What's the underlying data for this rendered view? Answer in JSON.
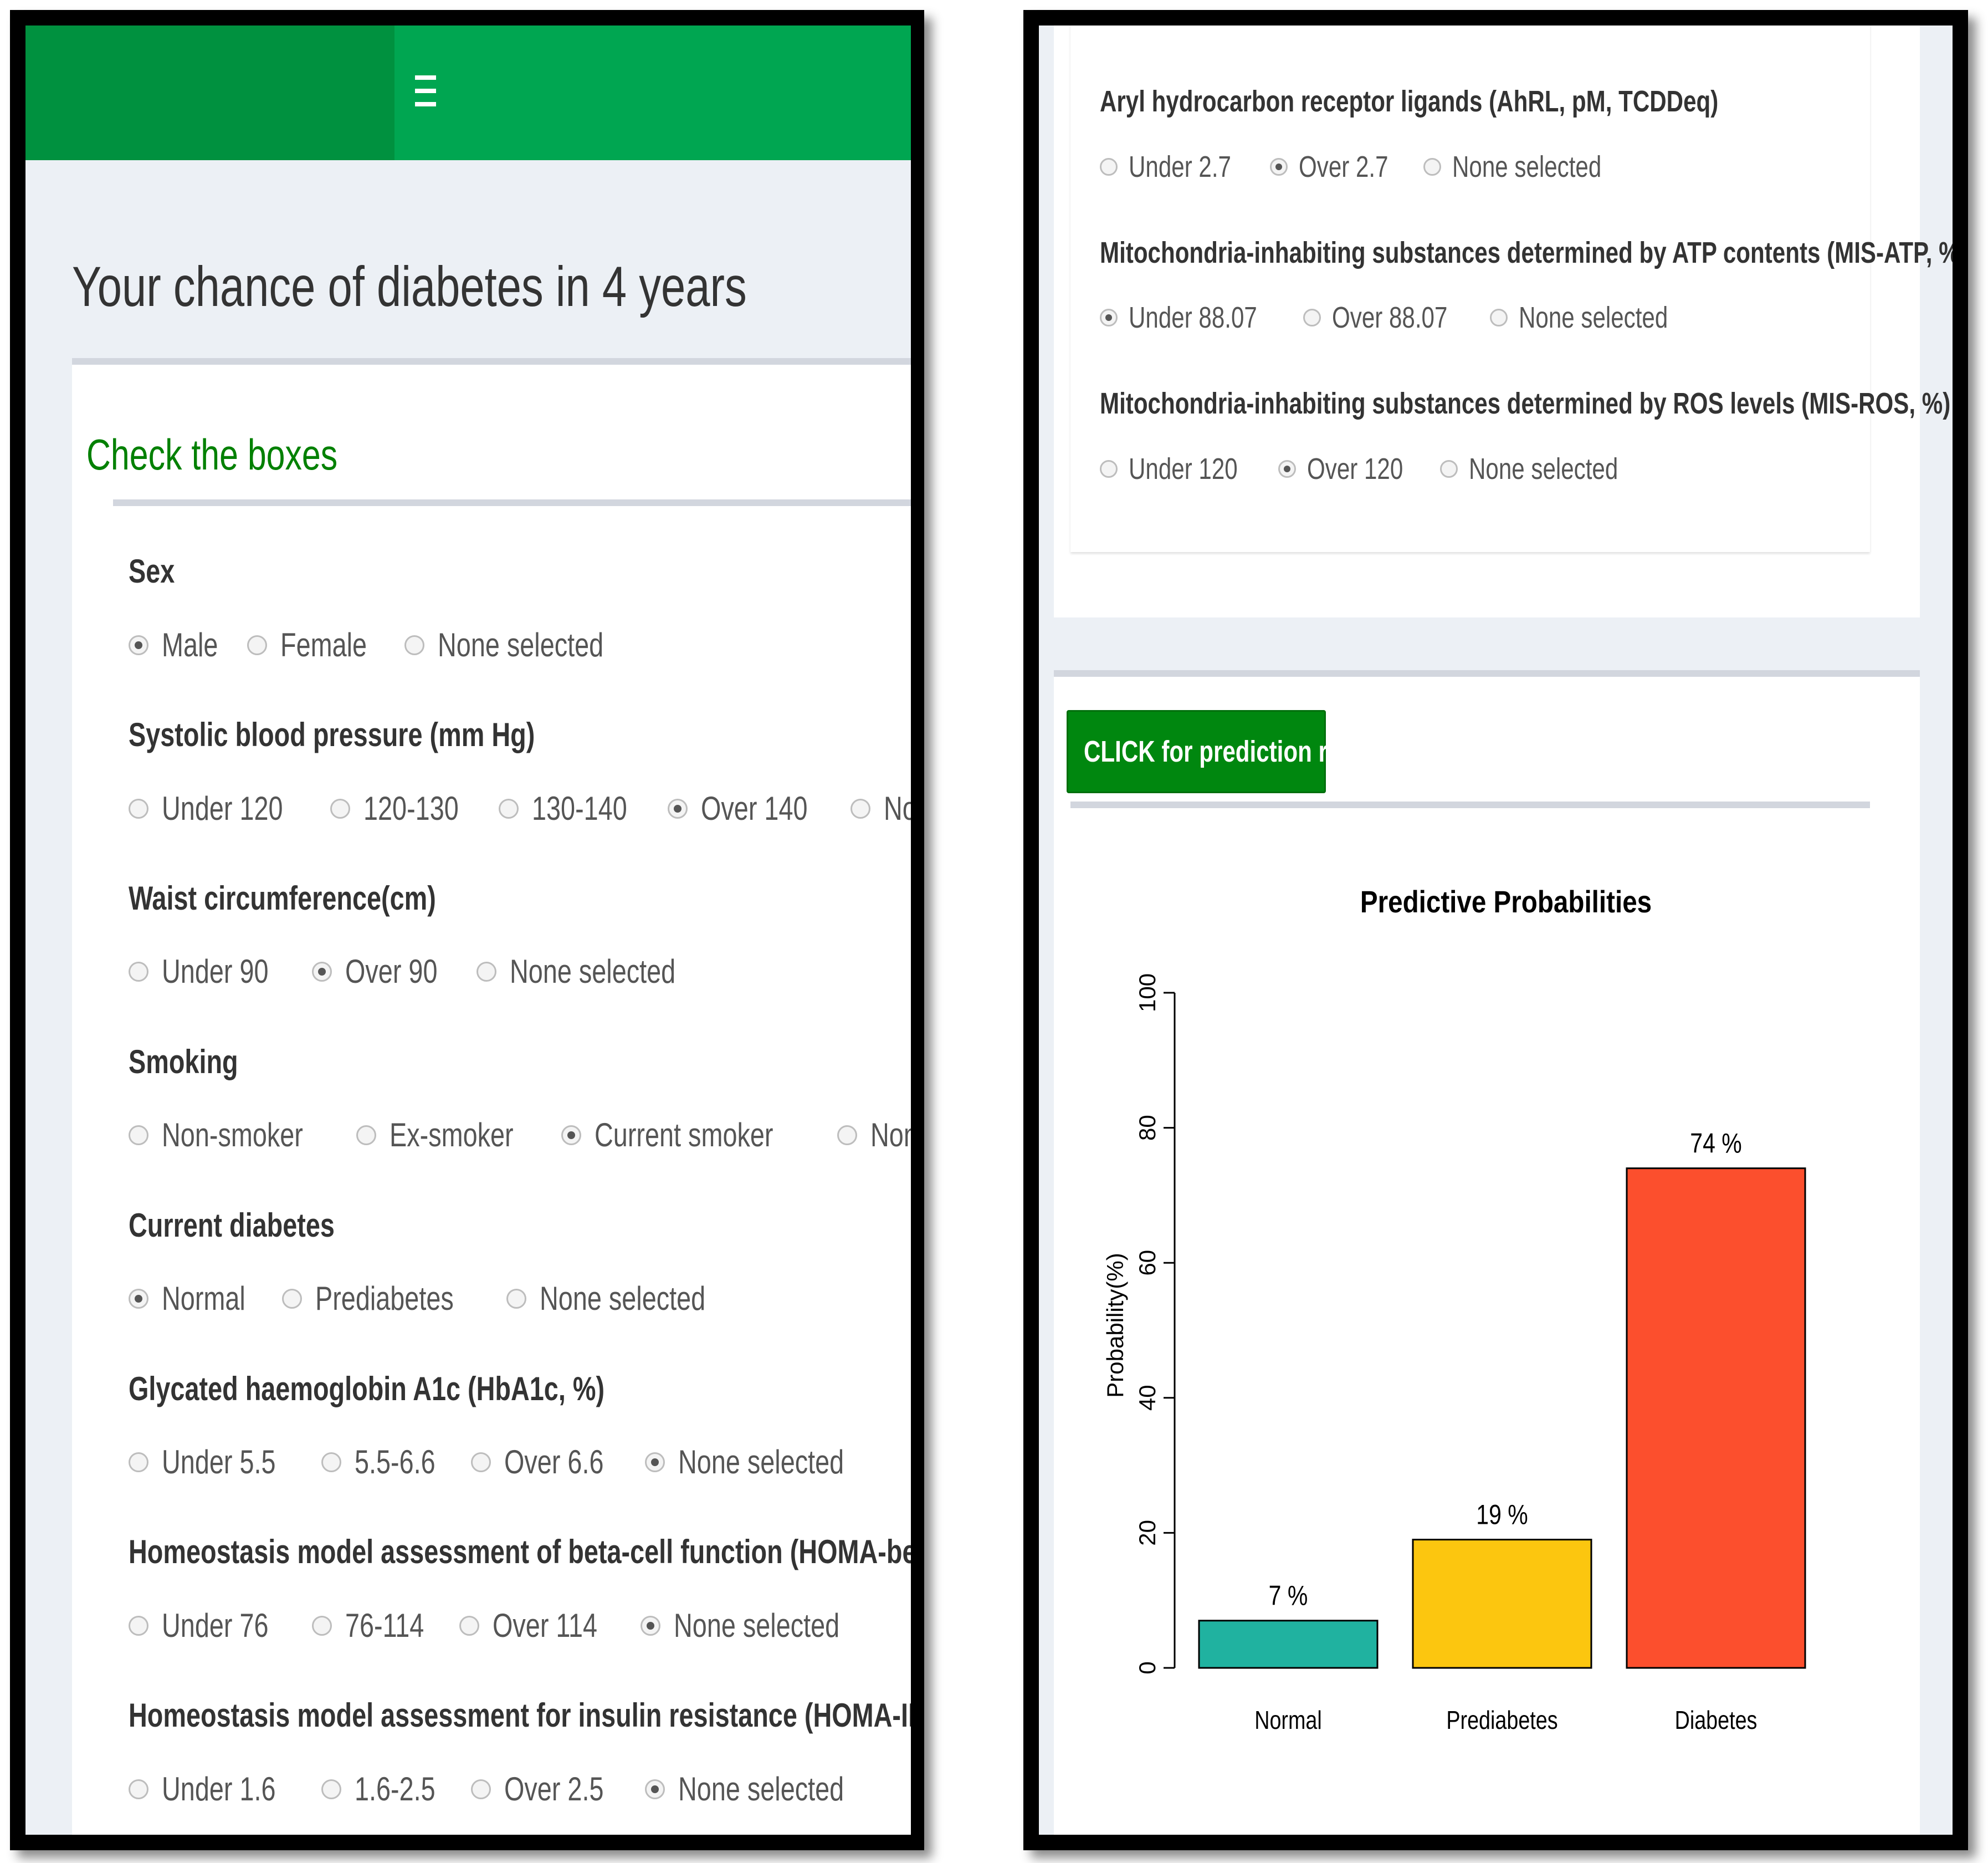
{
  "app": {
    "title": "Your chance of diabetes in 4 years",
    "menu_icon": "hamburger-menu-icon",
    "colors": {
      "header": "#00a651",
      "header_dark": "#00913f",
      "box_title": "#008000",
      "button": "#00870f"
    }
  },
  "form": {
    "box_title": "Check the boxes",
    "groups": [
      {
        "label": "Sex",
        "options": [
          "Male",
          "Female",
          "None selected"
        ],
        "selected": "Male"
      },
      {
        "label": "Systolic blood pressure (mm Hg)",
        "options": [
          "Under 120",
          "120-130",
          "130-140",
          "Over 140",
          "None selected"
        ],
        "selected": "Over 140"
      },
      {
        "label": "Waist circumference(cm)",
        "options": [
          "Under 90",
          "Over 90",
          "None selected"
        ],
        "selected": "Over 90"
      },
      {
        "label": "Smoking",
        "options": [
          "Non-smoker",
          "Ex-smoker",
          "Current smoker",
          "None selected"
        ],
        "selected": "Current smoker"
      },
      {
        "label": "Current diabetes",
        "options": [
          "Normal",
          "Prediabetes",
          "None selected"
        ],
        "selected": "Normal"
      },
      {
        "label": "Glycated haemoglobin A1c (HbA1c, %)",
        "options": [
          "Under 5.5",
          "5.5-6.6",
          "Over 6.6",
          "None selected"
        ],
        "selected": "None selected"
      },
      {
        "label": "Homeostasis model assessment of beta-cell function (HOMA-beta)",
        "options": [
          "Under 76",
          "76-114",
          "Over 114",
          "None selected"
        ],
        "selected": "None selected"
      },
      {
        "label": "Homeostasis model assessment for insulin resistance (HOMA-IR)",
        "options": [
          "Under 1.6",
          "1.6-2.5",
          "Over 2.5",
          "None selected"
        ],
        "selected": "None selected"
      },
      {
        "label": "Aryl hydrocarbon receptor ligands (AhRL, pM, TCDDeq)",
        "options": [
          "Under 2.7",
          "Over 2.7",
          "None selected"
        ],
        "selected": "Over 2.7"
      },
      {
        "label": "Mitochondria-inhabiting substances determined by ATP contents (MIS-ATP, %)",
        "options": [
          "Under 88.07",
          "Over 88.07",
          "None selected"
        ],
        "selected": "Under 88.07"
      },
      {
        "label": "Mitochondria-inhabiting substances determined by ROS levels (MIS-ROS, %)",
        "options": [
          "Under 120",
          "Over 120",
          "None selected"
        ],
        "selected": "Over 120"
      }
    ]
  },
  "predict_button": {
    "label": "CLICK for prediction results"
  },
  "chart_data": {
    "type": "bar",
    "title": "Predictive Probabilities",
    "ylabel": "Probability(%)",
    "xlabel": "",
    "categories": [
      "Normal",
      "Prediabetes",
      "Diabetes"
    ],
    "values": [
      7,
      19,
      74
    ],
    "data_labels": [
      "7 %",
      "19 %",
      "74 %"
    ],
    "colors": [
      "#20b2a0",
      "#fcc60f",
      "#fc4f2d"
    ],
    "ylim": [
      0,
      100
    ],
    "yticks": [
      "0",
      "20",
      "40",
      "60",
      "80",
      "100"
    ],
    "grid": false,
    "legend": "none"
  }
}
